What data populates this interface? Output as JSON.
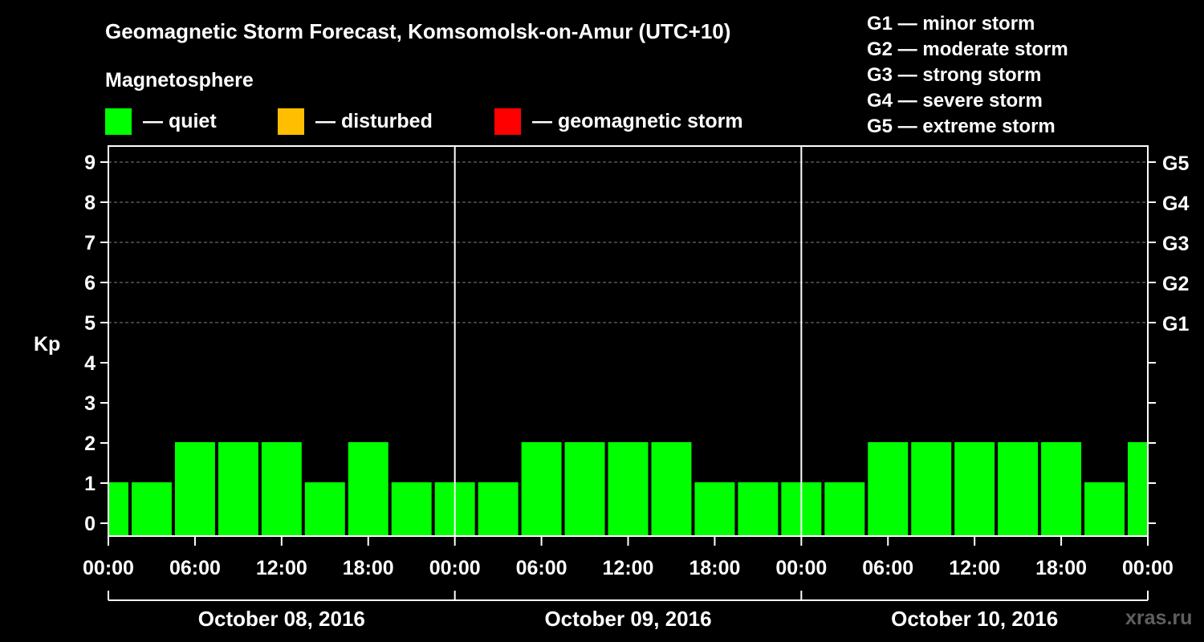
{
  "chart_data": {
    "type": "bar",
    "title": "Geomagnetic Storm Forecast, Komsomolsk-on-Amur (UTC+10)",
    "subtitle": "Magnetosphere",
    "ylabel": "Kp",
    "ylim": [
      0,
      9
    ],
    "yticks": [
      "0",
      "1",
      "2",
      "3",
      "4",
      "5",
      "6",
      "7",
      "8",
      "9"
    ],
    "right_axis_labels": [
      {
        "kp": 5,
        "label": "G1"
      },
      {
        "kp": 6,
        "label": "G2"
      },
      {
        "kp": 7,
        "label": "G3"
      },
      {
        "kp": 8,
        "label": "G4"
      },
      {
        "kp": 9,
        "label": "G5"
      }
    ],
    "x_tick_labels": [
      "00:00",
      "06:00",
      "12:00",
      "18:00",
      "00:00",
      "06:00",
      "12:00",
      "18:00",
      "00:00",
      "06:00",
      "12:00",
      "18:00",
      "00:00"
    ],
    "days": [
      "October 08, 2016",
      "October 09, 2016",
      "October 10, 2016"
    ],
    "bar_hours": [
      0,
      3,
      6,
      9,
      12,
      15,
      18,
      21,
      24,
      27,
      30,
      33,
      36,
      39,
      42,
      45,
      48,
      51,
      54,
      57,
      60,
      63,
      66,
      69,
      72
    ],
    "values": [
      1,
      1,
      2,
      2,
      2,
      1,
      2,
      1,
      1,
      1,
      2,
      2,
      2,
      2,
      1,
      1,
      1,
      1,
      2,
      2,
      2,
      2,
      2,
      1,
      2
    ],
    "legend": [
      {
        "label": "— quiet",
        "color": "#00ff00"
      },
      {
        "label": "— disturbed",
        "color": "#ffbf00"
      },
      {
        "label": "— geomagnetic storm",
        "color": "#ff0000"
      }
    ],
    "storm_scale": [
      "G1 — minor storm",
      "G2 — moderate storm",
      "G3 — strong storm",
      "G4 — severe storm",
      "G5 — extreme storm"
    ],
    "watermark": "xras.ru"
  }
}
